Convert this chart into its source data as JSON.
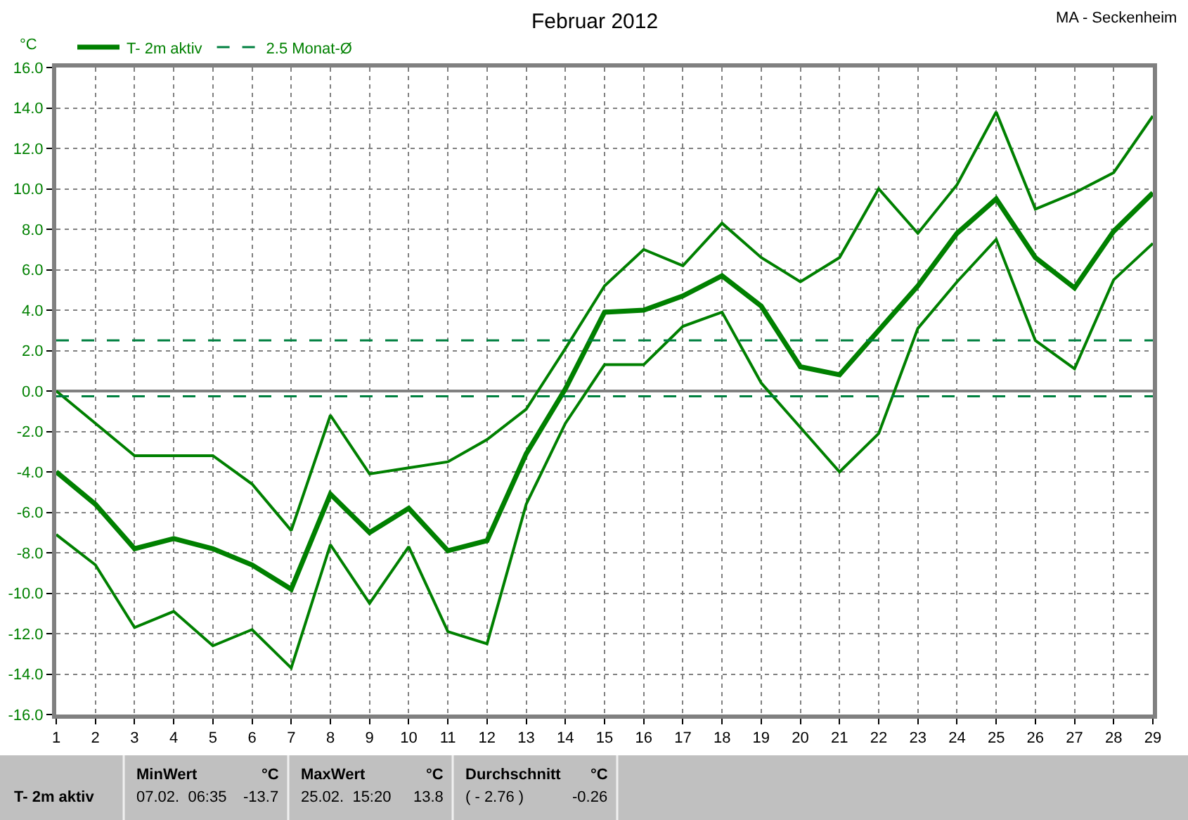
{
  "chart_data": {
    "type": "line",
    "title": "Februar 2012",
    "subtitle": "MA - Seckenheim",
    "ylabel": "°C",
    "annotations": [
      "T- 2m aktiv",
      "MinWert",
      "°C",
      "07.02.  06:35",
      "-13.7",
      "MaxWert",
      "°C",
      "25.02.  15:20",
      "13.8",
      "Durchschnitt",
      "°C",
      "( - 2.76 )",
      "-0.26"
    ],
    "x": [
      1,
      2,
      3,
      4,
      5,
      6,
      7,
      8,
      9,
      10,
      11,
      12,
      13,
      14,
      15,
      16,
      17,
      18,
      19,
      20,
      21,
      22,
      23,
      24,
      25,
      26,
      27,
      28,
      29
    ],
    "series": [
      {
        "color": "#008000",
        "values": [
          0.0,
          -1.6,
          -3.2,
          -3.2,
          -3.2,
          -4.6,
          -6.9,
          -1.2,
          -4.1,
          -3.8,
          -3.5,
          -2.4,
          -0.9,
          2.1,
          5.2,
          7.0,
          6.2,
          8.3,
          6.6,
          5.4,
          6.6,
          10.0,
          7.8,
          10.2,
          13.8,
          9.0,
          9.8,
          10.8,
          13.6
        ]
      },
      {
        "name": "T- 2m aktiv",
        "color": "#008000",
        "values": [
          -4.0,
          -5.6,
          -7.8,
          -7.3,
          -7.8,
          -8.6,
          -9.8,
          -5.1,
          -7.0,
          -5.8,
          -7.9,
          -7.4,
          -3.1,
          0.1,
          3.9,
          4.0,
          4.7,
          5.7,
          4.2,
          1.2,
          0.8,
          3.0,
          5.2,
          7.8,
          9.5,
          6.6,
          5.1,
          7.9,
          9.8
        ]
      },
      {
        "color": "#008000",
        "values": [
          -7.1,
          -8.6,
          -11.7,
          -10.9,
          -12.6,
          -11.8,
          -13.7,
          -7.6,
          -10.5,
          -7.7,
          -11.9,
          -12.5,
          -5.6,
          -1.6,
          1.3,
          1.3,
          3.2,
          3.9,
          0.4,
          -1.8,
          -4.0,
          -2.1,
          3.1,
          5.4,
          7.5,
          2.5,
          1.1,
          5.5,
          7.3
        ]
      }
    ],
    "xlim": [
      1,
      29
    ],
    "xticks": [
      1,
      2,
      3,
      4,
      5,
      6,
      7,
      8,
      9,
      10,
      11,
      12,
      13,
      14,
      15,
      16,
      17,
      18,
      19,
      20,
      21,
      22,
      23,
      24,
      25,
      26,
      27,
      28,
      29
    ],
    "ylim": [
      -16,
      16
    ],
    "yticks": [
      {
        "value": -16,
        "label": "-16.0"
      },
      {
        "value": -14,
        "label": "-14.0"
      },
      {
        "value": -12,
        "label": "-12.0"
      },
      {
        "value": -10,
        "label": "-10.0"
      },
      {
        "value": -8,
        "label": "-8.0"
      },
      {
        "value": -6,
        "label": "-6.0"
      },
      {
        "value": -4,
        "label": "-4.0"
      },
      {
        "value": -2,
        "label": "-2.0"
      },
      {
        "value": 0,
        "label": "0.0"
      },
      {
        "value": 2,
        "label": "2.0"
      },
      {
        "value": 4,
        "label": "4.0"
      },
      {
        "value": 6,
        "label": "6.0"
      },
      {
        "value": 8,
        "label": "8.0"
      },
      {
        "value": 10,
        "label": "10.0"
      },
      {
        "value": 12,
        "label": "12.0"
      },
      {
        "value": 14,
        "label": "14.0"
      },
      {
        "value": 16,
        "label": "16.0"
      }
    ],
    "ref_lines": [
      {
        "axis": "y",
        "value": 2.5,
        "label": "2.5 Monat-Ø",
        "color": "#008040",
        "line_style": "dashed"
      },
      {
        "axis": "y",
        "value": -0.26,
        "color": "#008040",
        "line_style": "dashed"
      }
    ],
    "grid": true,
    "legend": "top left"
  }
}
